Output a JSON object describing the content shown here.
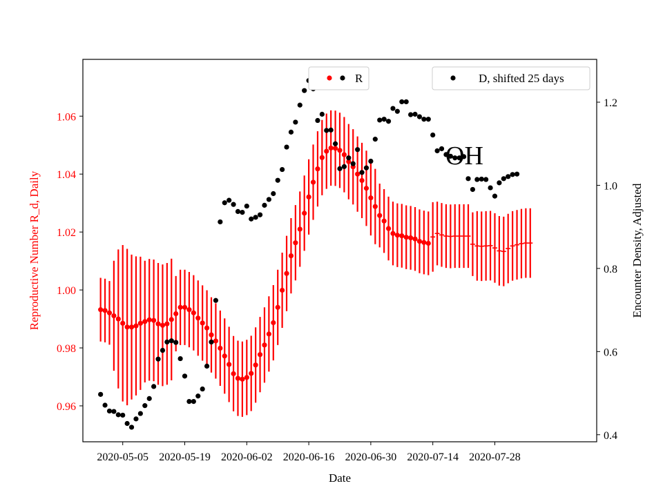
{
  "chart_data": {
    "type": "scatter",
    "annotation": "OH",
    "xlabel": "Date",
    "ylabel_left": "Reproductive Number R_d, Daily",
    "ylabel_right": "Encounter Density, Adjusted",
    "x_ticks": [
      "2020-05-05",
      "2020-05-19",
      "2020-06-02",
      "2020-06-16",
      "2020-06-30",
      "2020-07-14",
      "2020-07-28"
    ],
    "y_left_ticks": [
      "0.96",
      "0.98",
      "1.00",
      "1.02",
      "1.04",
      "1.06"
    ],
    "y_right_ticks": [
      "0.4",
      "0.6",
      "0.8",
      "1.0",
      "1.2"
    ],
    "x_range": [
      "2020-04-26",
      "2020-08-20"
    ],
    "y_left_range": [
      0.9476,
      1.0796
    ],
    "y_right_range": [
      0.383,
      1.303
    ],
    "grid": false,
    "legend": [
      {
        "label": "R",
        "color": "#ff0000",
        "position": "upper-center"
      },
      {
        "label": "D, shifted 25 days",
        "color": "#000000",
        "position": "upper-right"
      }
    ],
    "colors": {
      "r_series": "#ff0000",
      "d_series": "#000000",
      "annotation": "#000000"
    },
    "series": [
      {
        "name": "R",
        "axis": "left",
        "marker": "dot",
        "color": "#ff0000",
        "error_bars": true,
        "start_date": "2020-04-30",
        "y": [
          0.9932,
          0.9929,
          0.9921,
          0.9911,
          0.99,
          0.9885,
          0.9872,
          0.9872,
          0.9876,
          0.9885,
          0.9891,
          0.9897,
          0.9895,
          0.9883,
          0.9878,
          0.9883,
          0.9898,
          0.9918,
          0.994,
          0.994,
          0.9932,
          0.9921,
          0.9903,
          0.9886,
          0.9869,
          0.9845,
          0.9824,
          0.9799,
          0.9772,
          0.9743,
          0.9711,
          0.9695,
          0.9692,
          0.9698,
          0.9712,
          0.9741,
          0.9777,
          0.981,
          0.9848,
          0.9887,
          0.994,
          0.9999,
          1.0057,
          1.0118,
          1.0163,
          1.021,
          1.0265,
          1.0321,
          1.0372,
          1.0418,
          1.0457,
          1.0479,
          1.049,
          1.0489,
          1.0482,
          1.0467,
          1.0443,
          1.0425,
          1.04,
          1.0378,
          1.0351,
          1.0318,
          1.0288,
          1.0257,
          1.0238,
          1.0212,
          1.0195,
          1.0189,
          1.0187,
          1.0182,
          1.018,
          1.0176,
          1.0168,
          1.0164,
          1.0161
        ],
        "err": [
          0.011,
          0.011,
          0.011,
          0.019,
          0.024,
          0.027,
          0.027,
          0.025,
          0.024,
          0.023,
          0.021,
          0.021,
          0.021,
          0.021,
          0.021,
          0.021,
          0.021,
          0.013,
          0.013,
          0.013,
          0.013,
          0.013,
          0.013,
          0.013,
          0.013,
          0.013,
          0.013,
          0.013,
          0.013,
          0.013,
          0.013,
          0.013,
          0.013,
          0.013,
          0.013,
          0.013,
          0.013,
          0.013,
          0.013,
          0.013,
          0.013,
          0.013,
          0.013,
          0.013,
          0.013,
          0.013,
          0.013,
          0.013,
          0.013,
          0.013,
          0.013,
          0.013,
          0.013,
          0.013,
          0.013,
          0.013,
          0.013,
          0.013,
          0.013,
          0.013,
          0.013,
          0.013,
          0.013,
          0.011,
          0.011,
          0.011,
          0.011,
          0.011,
          0.011,
          0.011,
          0.011,
          0.011,
          0.011,
          0.011,
          0.011
        ],
        "flat_y": [
          1.0183,
          1.0195,
          1.019,
          1.0186,
          1.0185,
          1.0186,
          1.0186,
          1.0186,
          1.0186,
          1.0158,
          1.0152,
          1.0151,
          1.0152,
          1.0153,
          1.0145,
          1.0135,
          1.0133,
          1.0143,
          1.0152,
          1.0156,
          1.016,
          1.0162,
          1.0162
        ],
        "flat_err": [
          0.012,
          0.011,
          0.011,
          0.011,
          0.011,
          0.011,
          0.011,
          0.011,
          0.011,
          0.011,
          0.012,
          0.012,
          0.012,
          0.012,
          0.012,
          0.012,
          0.012,
          0.012,
          0.012,
          0.012,
          0.012,
          0.012,
          0.012
        ]
      },
      {
        "name": "D, shifted 25 days",
        "axis": "right",
        "marker": "dot",
        "color": "#000000",
        "points": [
          [
            "2020-04-30",
            0.497
          ],
          [
            "2020-05-01",
            0.471
          ],
          [
            "2020-05-02",
            0.457
          ],
          [
            "2020-05-03",
            0.456
          ],
          [
            "2020-05-04",
            0.448
          ],
          [
            "2020-05-05",
            0.447
          ],
          [
            "2020-05-06",
            0.427
          ],
          [
            "2020-05-07",
            0.418
          ],
          [
            "2020-05-08",
            0.438
          ],
          [
            "2020-05-09",
            0.451
          ],
          [
            "2020-05-10",
            0.47
          ],
          [
            "2020-05-11",
            0.487
          ],
          [
            "2020-05-12",
            0.516
          ],
          [
            "2020-05-13",
            0.582
          ],
          [
            "2020-05-14",
            0.603
          ],
          [
            "2020-05-15",
            0.623
          ],
          [
            "2020-05-16",
            0.626
          ],
          [
            "2020-05-17",
            0.622
          ],
          [
            "2020-05-18",
            0.583
          ],
          [
            "2020-05-19",
            0.541
          ],
          [
            "2020-05-20",
            0.48
          ],
          [
            "2020-05-21",
            0.48
          ],
          [
            "2020-05-22",
            0.493
          ],
          [
            "2020-05-23",
            0.51
          ],
          [
            "2020-05-24",
            0.565
          ],
          [
            "2020-05-25",
            0.623
          ],
          [
            "2020-05-26",
            0.723
          ],
          [
            "2020-05-27",
            0.912
          ],
          [
            "2020-05-28",
            0.958
          ],
          [
            "2020-05-29",
            0.964
          ],
          [
            "2020-05-30",
            0.954
          ],
          [
            "2020-05-31",
            0.937
          ],
          [
            "2020-06-01",
            0.935
          ],
          [
            "2020-06-02",
            0.95
          ],
          [
            "2020-06-03",
            0.919
          ],
          [
            "2020-06-04",
            0.923
          ],
          [
            "2020-06-05",
            0.929
          ],
          [
            "2020-06-06",
            0.952
          ],
          [
            "2020-06-07",
            0.966
          ],
          [
            "2020-06-08",
            0.98
          ],
          [
            "2020-06-09",
            1.012
          ],
          [
            "2020-06-10",
            1.038
          ],
          [
            "2020-06-11",
            1.092
          ],
          [
            "2020-06-12",
            1.128
          ],
          [
            "2020-06-13",
            1.152
          ],
          [
            "2020-06-14",
            1.193
          ],
          [
            "2020-06-15",
            1.228
          ],
          [
            "2020-06-16",
            1.252
          ],
          [
            "2020-06-17",
            1.232
          ],
          [
            "2020-06-18",
            1.156
          ],
          [
            "2020-06-19",
            1.171
          ],
          [
            "2020-06-20",
            1.132
          ],
          [
            "2020-06-21",
            1.133
          ],
          [
            "2020-06-22",
            1.1
          ],
          [
            "2020-06-23",
            1.04
          ],
          [
            "2020-06-24",
            1.045
          ],
          [
            "2020-06-25",
            1.066
          ],
          [
            "2020-06-26",
            1.052
          ],
          [
            "2020-06-27",
            1.086
          ],
          [
            "2020-06-28",
            1.031
          ],
          [
            "2020-06-29",
            1.042
          ],
          [
            "2020-06-30",
            1.058
          ],
          [
            "2020-07-01",
            1.111
          ],
          [
            "2020-07-02",
            1.157
          ],
          [
            "2020-07-03",
            1.159
          ],
          [
            "2020-07-04",
            1.154
          ],
          [
            "2020-07-05",
            1.185
          ],
          [
            "2020-07-06",
            1.178
          ],
          [
            "2020-07-07",
            1.201
          ],
          [
            "2020-07-08",
            1.201
          ],
          [
            "2020-07-09",
            1.17
          ],
          [
            "2020-07-10",
            1.171
          ],
          [
            "2020-07-11",
            1.165
          ],
          [
            "2020-07-12",
            1.159
          ],
          [
            "2020-07-13",
            1.159
          ],
          [
            "2020-07-14",
            1.121
          ],
          [
            "2020-07-15",
            1.083
          ],
          [
            "2020-07-16",
            1.088
          ],
          [
            "2020-07-17",
            1.074
          ],
          [
            "2020-07-18",
            1.07
          ],
          [
            "2020-07-19",
            1.066
          ],
          [
            "2020-07-20",
            1.066
          ],
          [
            "2020-07-21",
            1.069
          ],
          [
            "2020-07-22",
            1.016
          ],
          [
            "2020-07-23",
            0.99
          ],
          [
            "2020-07-24",
            1.014
          ],
          [
            "2020-07-25",
            1.015
          ],
          [
            "2020-07-26",
            1.014
          ],
          [
            "2020-07-27",
            0.994
          ],
          [
            "2020-07-28",
            0.974
          ],
          [
            "2020-07-29",
            1.006
          ],
          [
            "2020-07-30",
            1.016
          ],
          [
            "2020-07-31",
            1.021
          ],
          [
            "2020-08-01",
            1.026
          ],
          [
            "2020-08-02",
            1.027
          ]
        ]
      }
    ]
  }
}
